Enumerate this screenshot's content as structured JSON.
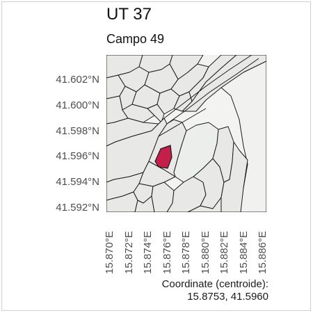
{
  "map": {
    "title": "UT 37",
    "subtitle": "Campo 49",
    "y_ticks": [
      "41.602°N",
      "41.600°N",
      "41.598°N",
      "41.596°N",
      "41.594°N",
      "41.592°N"
    ],
    "x_ticks": [
      "15.870°E",
      "15.872°E",
      "15.874°E",
      "15.876°E",
      "15.878°E",
      "15.880°E",
      "15.882°E",
      "15.884°E",
      "15.886°E"
    ],
    "caption_label": "Coordinate (centroide):",
    "caption_value": "15.8753, 41.5960",
    "colors": {
      "parcel_fill": "#e8e9e7",
      "parcel_stroke": "#1a1a1a",
      "highlight": "#c41e4a",
      "background": "#f3f4f2"
    },
    "highlighted_parcel": "Campo 49"
  }
}
